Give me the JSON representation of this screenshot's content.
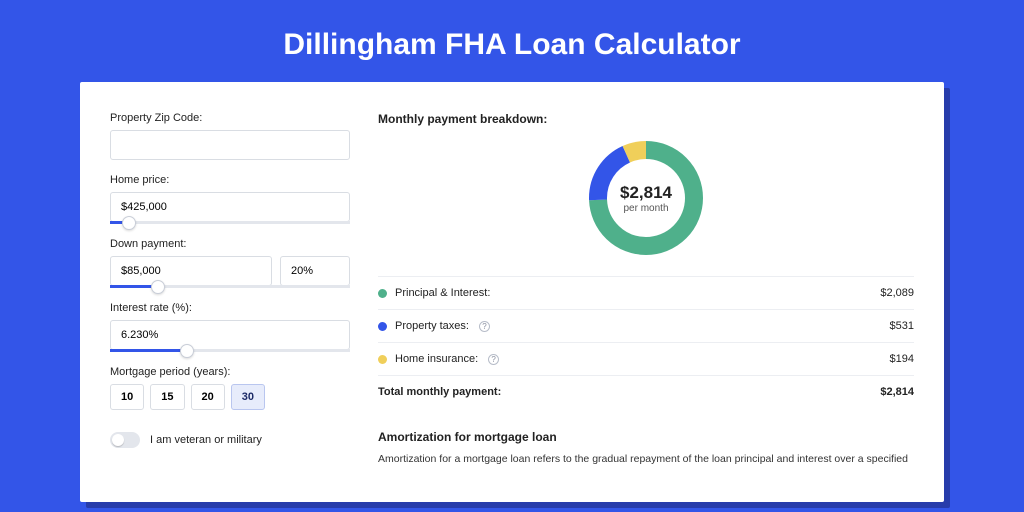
{
  "hero": {
    "title": "Dillingham FHA Loan Calculator"
  },
  "colors": {
    "accent": "#3355e8",
    "series_principal": "#4fb08b",
    "series_taxes": "#3355e8",
    "series_insurance": "#f0cf5a",
    "card_bg": "#ffffff"
  },
  "form": {
    "zip": {
      "label": "Property Zip Code:",
      "value": ""
    },
    "price": {
      "label": "Home price:",
      "value": "$425,000",
      "slider_pct": 8
    },
    "down": {
      "label": "Down payment:",
      "value": "$85,000",
      "pct_value": "20%",
      "slider_pct": 20
    },
    "rate": {
      "label": "Interest rate (%):",
      "value": "6.230%",
      "slider_pct": 32
    },
    "period": {
      "label": "Mortgage period (years):",
      "options": [
        "10",
        "15",
        "20",
        "30"
      ],
      "selected": "30"
    },
    "veteran": {
      "label": "I am veteran or military",
      "checked": false
    }
  },
  "breakdown": {
    "title": "Monthly payment breakdown:",
    "donut": {
      "amount": "$2,814",
      "sub": "per month",
      "total_value": 2814,
      "thickness": 18,
      "segments": [
        {
          "key": "principal",
          "value": 2089,
          "color": "#4fb08b"
        },
        {
          "key": "taxes",
          "value": 531,
          "color": "#3355e8"
        },
        {
          "key": "insurance",
          "value": 194,
          "color": "#f0cf5a"
        }
      ]
    },
    "rows": [
      {
        "dot": "#4fb08b",
        "label": "Principal & Interest:",
        "info": false,
        "amount": "$2,089"
      },
      {
        "dot": "#3355e8",
        "label": "Property taxes:",
        "info": true,
        "amount": "$531"
      },
      {
        "dot": "#f0cf5a",
        "label": "Home insurance:",
        "info": true,
        "amount": "$194"
      }
    ],
    "total": {
      "label": "Total monthly payment:",
      "amount": "$2,814"
    }
  },
  "amort": {
    "title": "Amortization for mortgage loan",
    "body": "Amortization for a mortgage loan refers to the gradual repayment of the loan principal and interest over a specified"
  }
}
